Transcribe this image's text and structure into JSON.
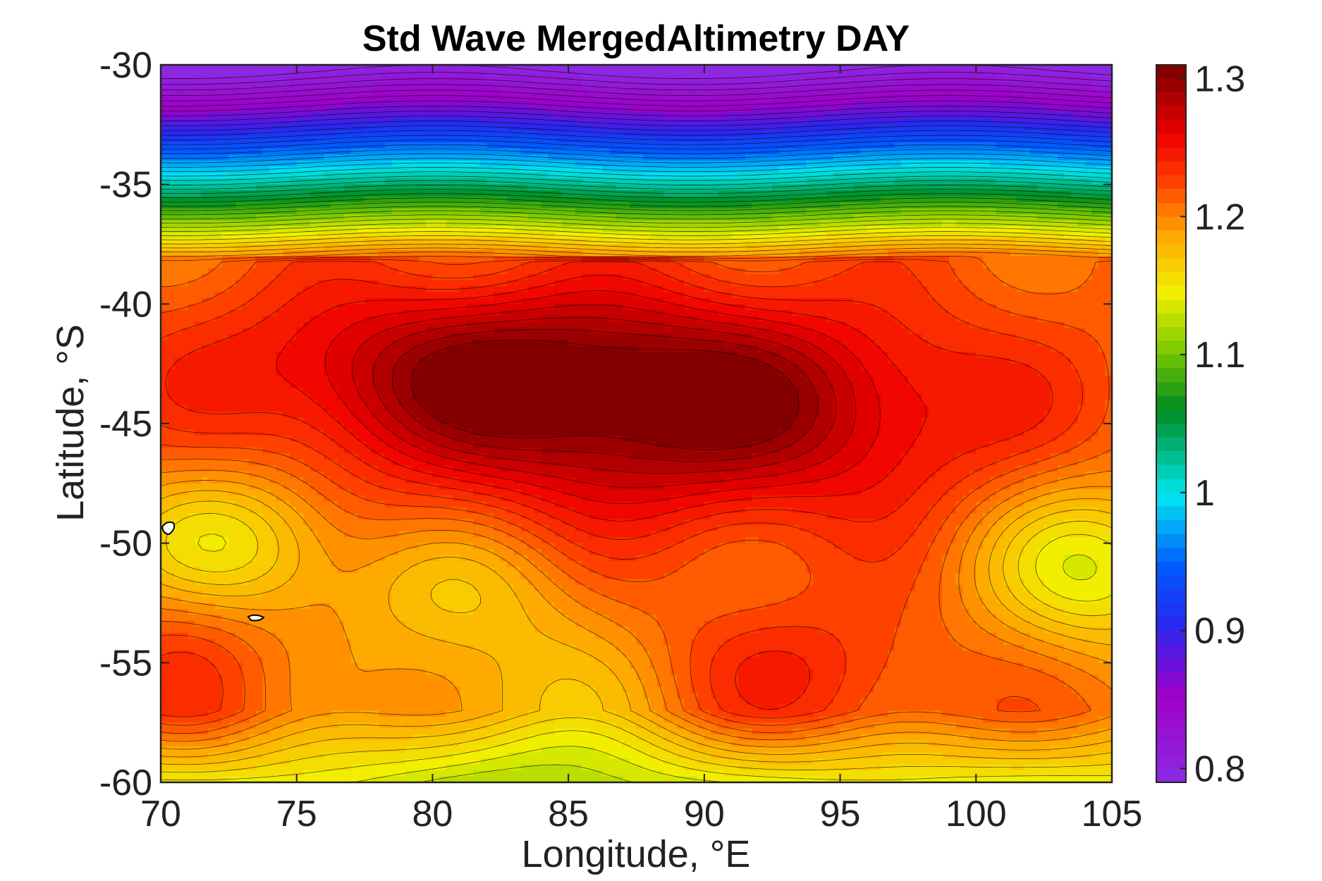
{
  "chart_data": {
    "type": "heatmap",
    "title": "Std Wave MergedAltimetry DAY",
    "xlabel": "Longitude, °E",
    "ylabel": "Latitude, °S",
    "xlim": [
      70,
      105
    ],
    "ylim": [
      -60,
      -30
    ],
    "x_ticks": [
      "70",
      "75",
      "80",
      "85",
      "90",
      "95",
      "100",
      "105"
    ],
    "y_ticks": [
      "-30",
      "-35",
      "-40",
      "-45",
      "-50",
      "-55",
      "-60"
    ],
    "x_tick_values": [
      70,
      75,
      80,
      85,
      90,
      95,
      100,
      105
    ],
    "y_tick_values": [
      -30,
      -35,
      -40,
      -45,
      -50,
      -55,
      -60
    ],
    "colorbar": {
      "range": [
        0.79,
        1.31
      ],
      "tick_values": [
        1.3,
        1.2,
        1.1,
        1,
        0.9,
        0.8
      ],
      "tick_labels": [
        "1.3",
        "1.2",
        "1.1",
        "1",
        "0.9",
        "0.8"
      ],
      "colormap": "hsv-like (violet-blue-cyan-green-yellow-orange-red-darkred)"
    },
    "grid": false,
    "approximate_field": {
      "description": "Std wave field: low (~0.8) near -30°S rising steeply to ~1.2 by -39°S; maximum (~1.3) around -42°S to -47°S, 80–97°E; secondary lows (~1.15) near -50°S at 72°E and 104°E; ~1.27 core near -56°S, 90–95°E; decreasing toward -60°S."
    }
  }
}
